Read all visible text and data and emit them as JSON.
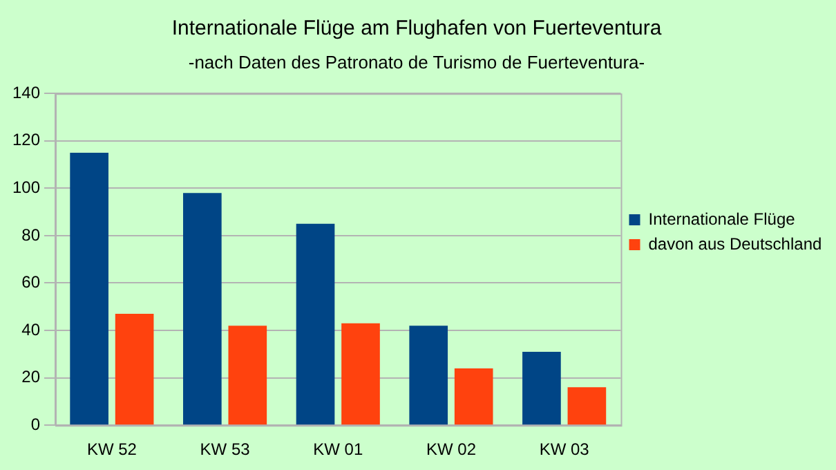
{
  "chart_data": {
    "type": "bar",
    "title": "Internationale Flüge am Flughafen von Fuerteventura",
    "subtitle": "-nach Daten des Patronato de Turismo de Fuerteventura-",
    "categories": [
      "KW 52",
      "KW 53",
      "KW 01",
      "KW 02",
      "KW 03"
    ],
    "series": [
      {
        "name": "Internationale Flüge",
        "color": "#004586",
        "values": [
          115,
          98,
          85,
          42,
          31
        ]
      },
      {
        "name": "davon aus Deutschland",
        "color": "#ff420e",
        "values": [
          47,
          42,
          43,
          24,
          16
        ]
      }
    ],
    "ylim": [
      0,
      140
    ],
    "yticks": [
      0,
      20,
      40,
      60,
      80,
      100,
      120,
      140
    ],
    "grid": "y",
    "legend": "right"
  }
}
